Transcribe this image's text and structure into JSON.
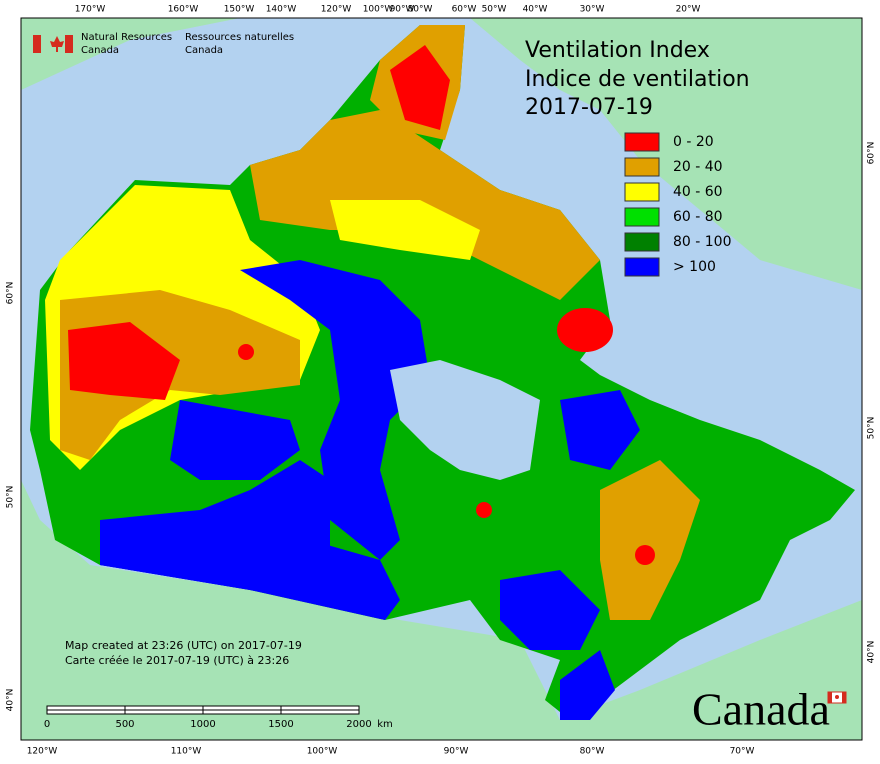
{
  "agency": {
    "en": [
      "Natural Resources",
      "Canada"
    ],
    "fr": [
      "Ressources naturelles",
      "Canada"
    ]
  },
  "title": [
    "Ventilation Index",
    "Indice de ventilation",
    "2017-07-19"
  ],
  "legend": [
    {
      "label": "0 - 20",
      "color": "#ff0000"
    },
    {
      "label": "20 - 40",
      "color": "#e0a000"
    },
    {
      "label": "40 - 60",
      "color": "#ffff00"
    },
    {
      "label": "60 - 80",
      "color": "#00e000"
    },
    {
      "label": "80 - 100",
      "color": "#008000"
    },
    {
      "label": "> 100",
      "color": "#0000ff"
    }
  ],
  "graticule": {
    "top": [
      "170°W",
      "160°W",
      "150°W",
      "140°W",
      "120°W",
      "100°W",
      "90°W",
      "80°W",
      "60°W",
      "50°W",
      "40°W",
      "30°W",
      "20°W"
    ],
    "bottom": [
      "120°W",
      "110°W",
      "100°W",
      "90°W",
      "80°W",
      "70°W"
    ],
    "left": [
      "60°N",
      "50°N",
      "40°N"
    ],
    "right": [
      "60°N",
      "50°N",
      "40°N"
    ]
  },
  "credits": [
    "Map created at 23:26 (UTC) on 2017-07-19",
    "Carte créée le 2017-07-19 (UTC) à 23:26"
  ],
  "scale": {
    "ticks": [
      0,
      500,
      1000,
      1500,
      2000
    ],
    "unit": "km"
  },
  "wordmark": "Canada"
}
